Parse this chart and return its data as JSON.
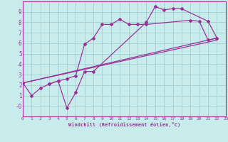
{
  "bg_color": "#c8ecec",
  "grid_color": "#aad4d4",
  "line_color": "#993399",
  "xlim": [
    0,
    23
  ],
  "ylim": [
    -1,
    10
  ],
  "xlabel": "Windchill (Refroidissement éolien,°C)",
  "xticks": [
    0,
    1,
    2,
    3,
    4,
    5,
    6,
    7,
    8,
    9,
    10,
    11,
    12,
    13,
    14,
    15,
    16,
    17,
    18,
    19,
    20,
    21,
    22,
    23
  ],
  "yticks": [
    0,
    1,
    2,
    3,
    4,
    5,
    6,
    7,
    8,
    9
  ],
  "ytick_labels": [
    "-0",
    "1",
    "2",
    "3",
    "4",
    "5",
    "6",
    "7",
    "8",
    "9"
  ],
  "series1_x": [
    0,
    1,
    2,
    3,
    4,
    5,
    6,
    7,
    8,
    9,
    10,
    11,
    12,
    13,
    14,
    19,
    20,
    21,
    22
  ],
  "series1_y": [
    2.2,
    1.0,
    1.7,
    2.1,
    2.4,
    2.6,
    2.9,
    5.9,
    6.5,
    7.8,
    7.8,
    8.3,
    7.8,
    7.8,
    7.8,
    8.2,
    8.1,
    6.3,
    6.5
  ],
  "series2_x": [
    3,
    4,
    5,
    6,
    7,
    8,
    14,
    15,
    16,
    17,
    18,
    21,
    22
  ],
  "series2_y": [
    2.1,
    2.4,
    -0.2,
    1.3,
    3.3,
    3.3,
    8.0,
    9.5,
    9.2,
    9.3,
    9.3,
    8.1,
    6.5
  ],
  "line3_x": [
    0,
    22
  ],
  "line3_y": [
    2.2,
    6.5
  ],
  "line4_x": [
    0,
    22
  ],
  "line4_y": [
    2.2,
    6.3
  ]
}
